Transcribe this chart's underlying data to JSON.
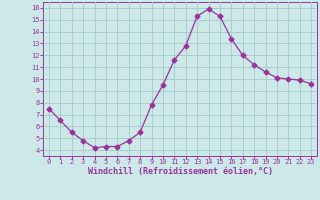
{
  "x": [
    0,
    1,
    2,
    3,
    4,
    5,
    6,
    7,
    8,
    9,
    10,
    11,
    12,
    13,
    14,
    15,
    16,
    17,
    18,
    19,
    20,
    21,
    22,
    23
  ],
  "y": [
    7.5,
    6.5,
    5.5,
    4.8,
    4.2,
    4.3,
    4.3,
    4.8,
    5.5,
    7.8,
    9.5,
    11.6,
    12.8,
    15.3,
    15.9,
    15.3,
    13.4,
    12.0,
    11.2,
    10.6,
    10.1,
    10.0,
    9.9,
    9.6
  ],
  "line_color": "#993399",
  "marker": "D",
  "marker_size": 2.5,
  "bg_color": "#cce8e8",
  "grid_color": "#aacccc",
  "xlabel": "Windchill (Refroidissement éolien,°C)",
  "xlim": [
    -0.5,
    23.5
  ],
  "ylim": [
    3.5,
    16.5
  ],
  "xticks": [
    0,
    1,
    2,
    3,
    4,
    5,
    6,
    7,
    8,
    9,
    10,
    11,
    12,
    13,
    14,
    15,
    16,
    17,
    18,
    19,
    20,
    21,
    22,
    23
  ],
  "yticks": [
    4,
    5,
    6,
    7,
    8,
    9,
    10,
    11,
    12,
    13,
    14,
    15,
    16
  ],
  "color": "#993399"
}
